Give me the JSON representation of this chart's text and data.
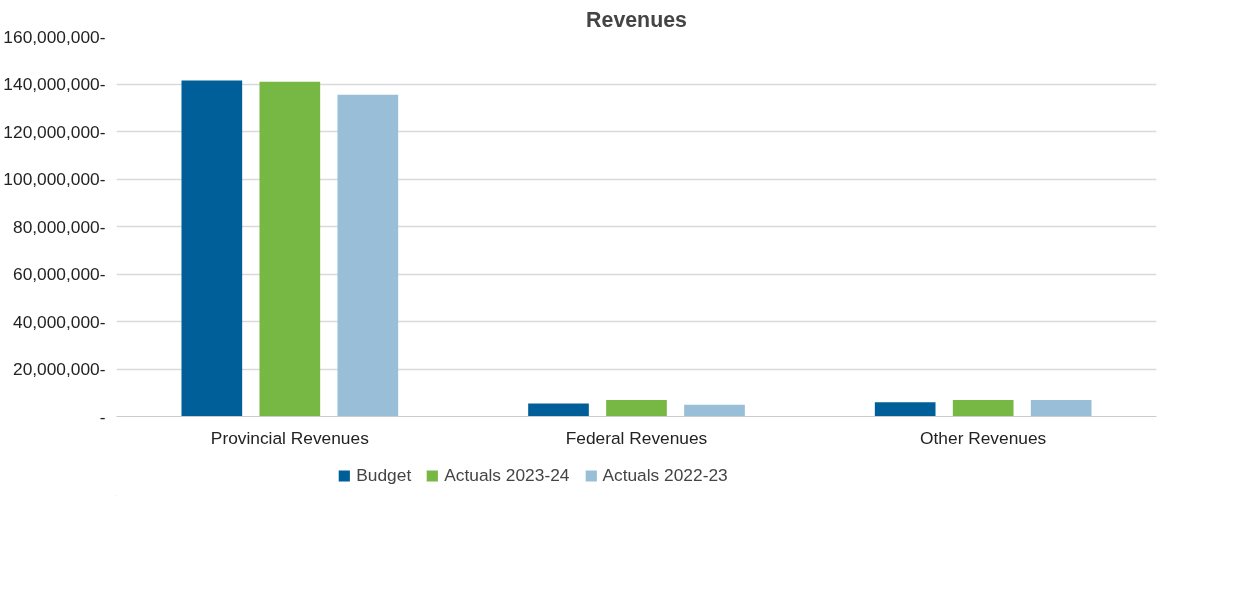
{
  "chart_data": {
    "type": "bar",
    "title": "Revenues",
    "categories": [
      "Provincial Revenues",
      "Federal Revenues",
      "Other Revenues"
    ],
    "series": [
      {
        "name": "Budget",
        "color": "#005f99",
        "values": [
          141500000,
          5500000,
          6000000
        ]
      },
      {
        "name": "Actuals 2023-24",
        "color": "#76b843",
        "values": [
          141000000,
          7000000,
          7000000
        ]
      },
      {
        "name": "Actuals 2022-23",
        "color": "#98bfd7",
        "values": [
          135500000,
          5000000,
          7000000
        ]
      }
    ],
    "ylim": [
      0,
      160000000
    ],
    "yticks": [
      {
        "value": 0,
        "label": "-"
      },
      {
        "value": 20000000,
        "label": "20,000,000-"
      },
      {
        "value": 40000000,
        "label": "40,000,000-"
      },
      {
        "value": 60000000,
        "label": "60,000,000-"
      },
      {
        "value": 80000000,
        "label": "80,000,000-"
      },
      {
        "value": 100000000,
        "label": "100,000,000-"
      },
      {
        "value": 120000000,
        "label": "120,000,000-"
      },
      {
        "value": 140000000,
        "label": "140,000,000-"
      },
      {
        "value": 160000000,
        "label": "160,000,000-"
      }
    ],
    "grid": "y",
    "legend": "bottom"
  }
}
